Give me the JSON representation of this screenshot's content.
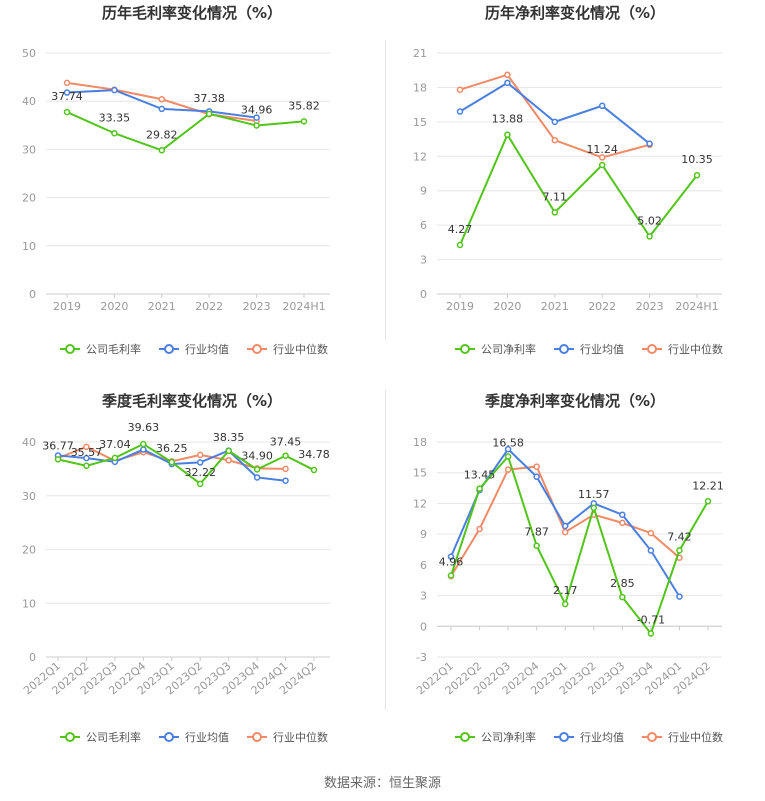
{
  "colors": {
    "company": "#52c41a",
    "avg": "#4a7fe0",
    "median": "#f08a67",
    "grid": "#e6e6e6",
    "axis": "#999999",
    "label": "#333333"
  },
  "legend": {
    "avg": "行业均值",
    "median": "行业中位数"
  },
  "source_text": "数据来源：恒生聚源",
  "chart_data": [
    {
      "type": "line",
      "title": "历年毛利率变化情况（%）",
      "categories": [
        "2019",
        "2020",
        "2021",
        "2022",
        "2023",
        "2024H1"
      ],
      "ylim": [
        0,
        50
      ],
      "yticks": [
        0,
        10,
        20,
        30,
        40,
        50
      ],
      "legend_company": "公司毛利率",
      "series": [
        {
          "key": "company",
          "name": "公司毛利率",
          "values": [
            37.74,
            33.35,
            29.82,
            37.38,
            34.96,
            35.82
          ],
          "labels": [
            "37.74",
            "33.35",
            "29.82",
            "37.38",
            "34.96",
            "35.82"
          ]
        },
        {
          "key": "avg",
          "name": "行业均值",
          "values": [
            41.8,
            42.3,
            38.4,
            37.9,
            36.6,
            null
          ]
        },
        {
          "key": "median",
          "name": "行业中位数",
          "values": [
            43.8,
            42.4,
            40.4,
            37.3,
            35.9,
            null
          ]
        }
      ]
    },
    {
      "type": "line",
      "title": "历年净利率变化情况（%）",
      "categories": [
        "2019",
        "2020",
        "2021",
        "2022",
        "2023",
        "2024H1"
      ],
      "ylim": [
        0,
        21
      ],
      "yticks": [
        0,
        3,
        6,
        9,
        12,
        15,
        18,
        21
      ],
      "legend_company": "公司净利率",
      "series": [
        {
          "key": "company",
          "name": "公司净利率",
          "values": [
            4.27,
            13.88,
            7.11,
            11.24,
            5.02,
            10.35
          ],
          "labels": [
            "4.27",
            "13.88",
            "7.11",
            "11.24",
            "5.02",
            "10.35"
          ]
        },
        {
          "key": "avg",
          "name": "行业均值",
          "values": [
            15.9,
            18.4,
            15.0,
            16.4,
            13.1,
            null
          ]
        },
        {
          "key": "median",
          "name": "行业中位数",
          "values": [
            17.8,
            19.1,
            13.4,
            11.9,
            13.0,
            null
          ]
        }
      ]
    },
    {
      "type": "line",
      "title": "季度毛利率变化情况（%）",
      "categories": [
        "2022Q1",
        "2022Q2",
        "2022Q3",
        "2022Q4",
        "2023Q1",
        "2023Q2",
        "2023Q3",
        "2023Q4",
        "2024Q1",
        "2024Q2"
      ],
      "ylim": [
        0,
        40
      ],
      "yticks": [
        0,
        10,
        20,
        30,
        40
      ],
      "legend_company": "公司毛利率",
      "series": [
        {
          "key": "company",
          "name": "公司毛利率",
          "values": [
            36.77,
            35.57,
            37.04,
            39.63,
            36.25,
            32.22,
            38.35,
            34.9,
            37.45,
            34.78
          ],
          "labels": [
            "36.77",
            "35.57",
            "37.04",
            "39.63",
            "36.25",
            "32.22",
            "38.35",
            "34.90",
            "37.45",
            "34.78"
          ]
        },
        {
          "key": "avg",
          "name": "行业均值",
          "values": [
            37.5,
            37.0,
            36.3,
            38.6,
            35.9,
            36.2,
            38.4,
            33.4,
            32.8,
            null
          ]
        },
        {
          "key": "median",
          "name": "行业中位数",
          "values": [
            37.0,
            39.1,
            36.5,
            38.1,
            36.4,
            37.6,
            36.6,
            35.1,
            35.0,
            null
          ]
        }
      ]
    },
    {
      "type": "line",
      "title": "季度净利率变化情况（%）",
      "categories": [
        "2022Q1",
        "2022Q2",
        "2022Q3",
        "2022Q4",
        "2023Q1",
        "2023Q2",
        "2023Q3",
        "2023Q4",
        "2024Q1",
        "2024Q2"
      ],
      "ylim": [
        -3,
        18
      ],
      "yticks": [
        -3,
        0,
        3,
        6,
        9,
        12,
        15,
        18
      ],
      "legend_company": "公司净利率",
      "series": [
        {
          "key": "company",
          "name": "公司净利率",
          "values": [
            4.96,
            13.45,
            16.58,
            7.87,
            2.17,
            11.57,
            2.85,
            -0.71,
            7.42,
            12.21
          ],
          "labels": [
            "4.96",
            "13.45",
            "16.58",
            "7.87",
            "2.17",
            "11.57",
            "2.85",
            "-0.71",
            "7.42",
            "12.21"
          ]
        },
        {
          "key": "avg",
          "name": "行业均值",
          "values": [
            6.8,
            13.3,
            17.3,
            14.6,
            9.8,
            12.0,
            10.9,
            7.4,
            2.9,
            null
          ]
        },
        {
          "key": "median",
          "name": "行业中位数",
          "values": [
            4.9,
            9.5,
            15.3,
            15.6,
            9.2,
            10.9,
            10.1,
            9.1,
            6.7,
            null
          ]
        }
      ]
    }
  ]
}
